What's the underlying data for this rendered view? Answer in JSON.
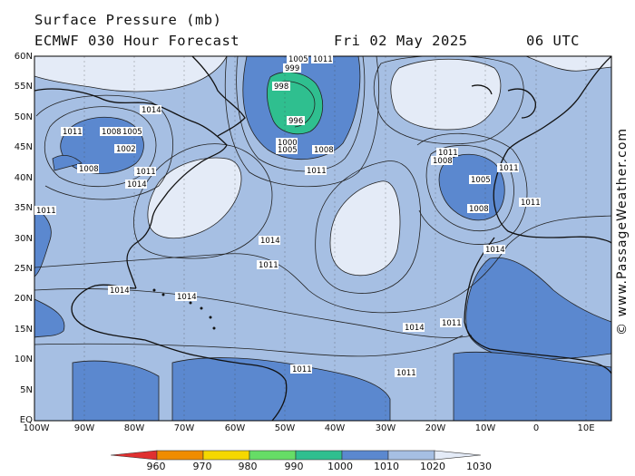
{
  "header": {
    "title": "Surface Pressure (mb)",
    "model": "ECMWF 030 Hour Forecast",
    "date": "Fri 02 May 2025",
    "time": "06 UTC"
  },
  "watermark": "© www.PassageWeather.com",
  "axes": {
    "lat_labels": [
      "60N",
      "55N",
      "50N",
      "45N",
      "40N",
      "35N",
      "30N",
      "25N",
      "20N",
      "15N",
      "10N",
      "5N",
      "EQ"
    ],
    "lon_labels": [
      "100W",
      "90W",
      "80W",
      "70W",
      "60W",
      "50W",
      "40W",
      "30W",
      "20W",
      "10W",
      "0",
      "10E"
    ]
  },
  "colorbar": {
    "labels": [
      "960",
      "970",
      "980",
      "990",
      "1000",
      "1010",
      "1020",
      "1030"
    ],
    "colors": [
      "#e03030",
      "#f08c00",
      "#f5d800",
      "#66dd66",
      "#2fbf8f",
      "#5b88cf",
      "#a6bfe3",
      "#e4ebf7"
    ]
  },
  "isobar_labels": [
    "1005",
    "1011",
    "999",
    "998",
    "996",
    "1000",
    "1005",
    "1008",
    "1011",
    "1014",
    "1011",
    "1008",
    "1005",
    "1002",
    "1008",
    "1011",
    "1014",
    "1011",
    "1008",
    "1005",
    "1008",
    "1011",
    "1011",
    "1011",
    "1014",
    "1011",
    "1014",
    "1014",
    "1014",
    "1014",
    "1011",
    "1011",
    "1011"
  ]
}
